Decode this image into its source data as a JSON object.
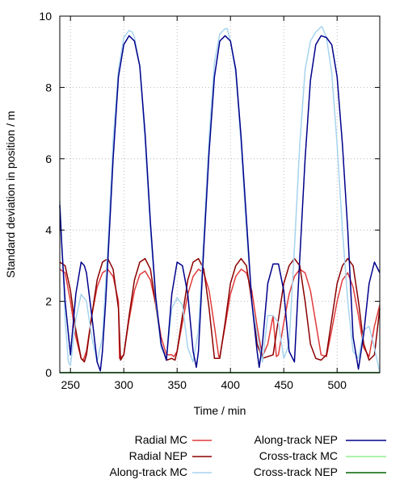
{
  "chart_data": {
    "type": "line",
    "title": "",
    "xlabel": "Time / min",
    "ylabel": "Standard deviation in position / m",
    "xlim": [
      240,
      540
    ],
    "ylim": [
      0,
      10
    ],
    "xticks": [
      250,
      300,
      350,
      400,
      450,
      500
    ],
    "yticks": [
      0,
      2,
      4,
      6,
      8,
      10
    ],
    "grid": true,
    "legend_position": "bottom",
    "series": [
      {
        "name": "Radial MC",
        "color": "#e03a3a",
        "x": [
          240,
          245,
          250,
          255,
          260,
          262,
          265,
          270,
          275,
          280,
          285,
          290,
          295,
          296,
          300,
          305,
          310,
          315,
          320,
          325,
          330,
          335,
          340,
          345,
          347,
          350,
          355,
          360,
          365,
          370,
          375,
          380,
          385,
          389,
          390,
          395,
          400,
          405,
          410,
          415,
          420,
          425,
          430,
          435,
          440,
          443,
          445,
          450,
          455,
          460,
          465,
          470,
          475,
          480,
          485,
          490,
          495,
          500,
          505,
          510,
          515,
          520,
          525,
          530,
          535,
          540
        ],
        "y": [
          2.9,
          2.8,
          2.0,
          1.0,
          0.4,
          0.35,
          0.6,
          1.6,
          2.4,
          2.8,
          2.9,
          2.7,
          2.0,
          0.4,
          0.5,
          1.5,
          2.3,
          2.75,
          2.85,
          2.6,
          1.9,
          1.0,
          0.5,
          0.5,
          0.45,
          0.6,
          1.4,
          2.2,
          2.7,
          2.9,
          2.8,
          2.3,
          1.3,
          0.45,
          0.45,
          1.3,
          2.2,
          2.7,
          2.9,
          2.8,
          2.3,
          1.3,
          0.45,
          0.8,
          1.6,
          0.45,
          0.5,
          1.4,
          2.2,
          2.7,
          2.9,
          2.8,
          2.3,
          1.4,
          0.5,
          0.45,
          1.2,
          2.0,
          2.6,
          2.8,
          2.4,
          1.6,
          0.7,
          0.45,
          1.3,
          1.9
        ]
      },
      {
        "name": "Radial NEP",
        "color": "#8b0000",
        "x": [
          240,
          245,
          250,
          255,
          260,
          263,
          265,
          270,
          275,
          280,
          285,
          290,
          295,
          297,
          300,
          305,
          310,
          315,
          320,
          325,
          330,
          335,
          340,
          345,
          348,
          350,
          355,
          360,
          365,
          370,
          375,
          380,
          385,
          390,
          395,
          400,
          405,
          410,
          415,
          420,
          425,
          430,
          435,
          440,
          445,
          450,
          455,
          460,
          465,
          470,
          475,
          480,
          485,
          490,
          495,
          500,
          505,
          510,
          515,
          520,
          525,
          530,
          535,
          540
        ],
        "y": [
          3.1,
          3.0,
          2.3,
          1.2,
          0.4,
          0.3,
          0.5,
          1.6,
          2.6,
          3.1,
          3.2,
          2.9,
          1.8,
          0.35,
          0.5,
          1.6,
          2.6,
          3.1,
          3.2,
          2.9,
          1.9,
          0.8,
          0.35,
          0.4,
          0.35,
          0.6,
          1.6,
          2.6,
          3.1,
          3.2,
          2.9,
          1.8,
          0.4,
          0.4,
          1.4,
          2.5,
          3.0,
          3.2,
          3.0,
          2.0,
          0.8,
          0.4,
          0.45,
          0.5,
          1.5,
          2.5,
          3.0,
          3.2,
          3.0,
          2.0,
          0.8,
          0.4,
          0.35,
          0.5,
          1.5,
          2.5,
          3.0,
          3.2,
          3.0,
          2.0,
          0.8,
          0.35,
          0.5,
          1.8
        ]
      },
      {
        "name": "Along-track MC",
        "color": "#a6d4ee",
        "x": [
          240,
          243,
          245,
          248,
          250,
          255,
          260,
          265,
          270,
          275,
          280,
          285,
          290,
          295,
          300,
          305,
          308,
          310,
          315,
          320,
          325,
          330,
          335,
          340,
          345,
          350,
          355,
          360,
          365,
          370,
          375,
          380,
          385,
          390,
          395,
          397,
          400,
          405,
          410,
          415,
          420,
          425,
          430,
          435,
          440,
          445,
          450,
          455,
          460,
          465,
          470,
          475,
          480,
          485,
          486,
          490,
          495,
          500,
          505,
          510,
          515,
          520,
          525,
          530,
          535,
          540
        ],
        "y": [
          4.8,
          3.0,
          1.5,
          0.3,
          0.2,
          1.5,
          2.2,
          2.0,
          1.0,
          0.3,
          1.0,
          3.5,
          6.5,
          8.5,
          9.4,
          9.6,
          9.55,
          9.4,
          8.6,
          6.5,
          4.0,
          2.0,
          0.7,
          0.4,
          1.8,
          2.1,
          1.9,
          0.7,
          0.3,
          1.2,
          3.8,
          6.6,
          8.7,
          9.5,
          9.65,
          9.65,
          9.3,
          8.4,
          6.4,
          4.0,
          2.0,
          1.1,
          0.3,
          1.6,
          1.6,
          1.4,
          0.4,
          0.8,
          3.5,
          6.4,
          8.5,
          9.3,
          9.55,
          9.7,
          9.7,
          9.4,
          8.4,
          6.4,
          4.0,
          2.0,
          0.6,
          0.4,
          1.2,
          1.3,
          0.7,
          0.0
        ]
      },
      {
        "name": "Along-track NEP",
        "color": "#00008b",
        "x": [
          240,
          242,
          245,
          250,
          255,
          260,
          263,
          265,
          270,
          275,
          278,
          280,
          283,
          285,
          290,
          295,
          300,
          305,
          310,
          315,
          320,
          325,
          330,
          335,
          340,
          345,
          350,
          355,
          360,
          365,
          368,
          370,
          375,
          380,
          385,
          390,
          395,
          400,
          405,
          410,
          415,
          420,
          425,
          427,
          430,
          435,
          440,
          445,
          450,
          455,
          460,
          465,
          470,
          475,
          480,
          485,
          490,
          495,
          500,
          505,
          510,
          515,
          520,
          525,
          530,
          535,
          540
        ],
        "y": [
          4.7,
          3.5,
          2.0,
          0.5,
          2.2,
          3.1,
          3.0,
          2.8,
          1.6,
          0.3,
          0.05,
          0.6,
          2.0,
          3.1,
          6.0,
          8.3,
          9.2,
          9.45,
          9.3,
          8.6,
          6.7,
          4.2,
          2.1,
          0.8,
          0.35,
          2.2,
          3.1,
          3.0,
          2.2,
          0.6,
          0.15,
          0.6,
          3.5,
          6.2,
          8.3,
          9.3,
          9.45,
          9.3,
          8.5,
          6.6,
          4.3,
          2.0,
          0.6,
          0.15,
          0.8,
          2.5,
          3.05,
          3.05,
          2.3,
          0.6,
          0.3,
          3.2,
          6.0,
          8.2,
          9.2,
          9.45,
          9.4,
          9.2,
          8.3,
          6.4,
          4.0,
          1.0,
          0.1,
          1.1,
          2.5,
          3.1,
          2.8
        ]
      },
      {
        "name": "Cross-track MC",
        "color": "#90ee90",
        "x": [
          240,
          540
        ],
        "y": [
          0.0,
          0.0
        ]
      },
      {
        "name": "Cross-track NEP",
        "color": "#006400",
        "x": [
          240,
          540
        ],
        "y": [
          0.0,
          0.0
        ]
      }
    ]
  }
}
